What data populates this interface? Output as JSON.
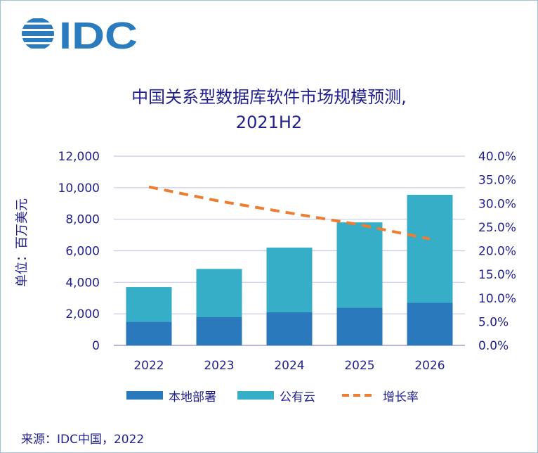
{
  "brand": {
    "logo_text": "IDC",
    "logo_color": "#2b7bbf"
  },
  "chart_data": {
    "type": "stacked-bar-with-line",
    "title_line1": "中国关系型数据库软件市场规模预测,",
    "title_line2": "2021H2",
    "ylabel": "单位：百万美元",
    "categories": [
      "2022",
      "2023",
      "2024",
      "2025",
      "2026"
    ],
    "y_ticks": [
      "0",
      "2,000",
      "4,000",
      "6,000",
      "8,000",
      "10,000",
      "12,000"
    ],
    "y2_ticks": [
      "0.0%",
      "5.0%",
      "10.0%",
      "15.0%",
      "20.0%",
      "25.0%",
      "30.0%",
      "35.0%",
      "40.0%"
    ],
    "ylim": [
      0,
      12000
    ],
    "y2lim": [
      0,
      40
    ],
    "series": [
      {
        "name": "本地部署",
        "type": "bar",
        "color": "#2b79bd",
        "values": [
          1500,
          1800,
          2100,
          2400,
          2700
        ]
      },
      {
        "name": "公有云",
        "type": "bar",
        "color": "#36aec8",
        "values": [
          2200,
          3050,
          4100,
          5400,
          6850
        ]
      },
      {
        "name": "增长率",
        "type": "line",
        "axis": "right",
        "color": "#ed7d31",
        "values": [
          33.5,
          30.5,
          28.0,
          25.5,
          22.5
        ]
      }
    ],
    "grid": true
  },
  "source_text": "来源：IDC中国，2022"
}
